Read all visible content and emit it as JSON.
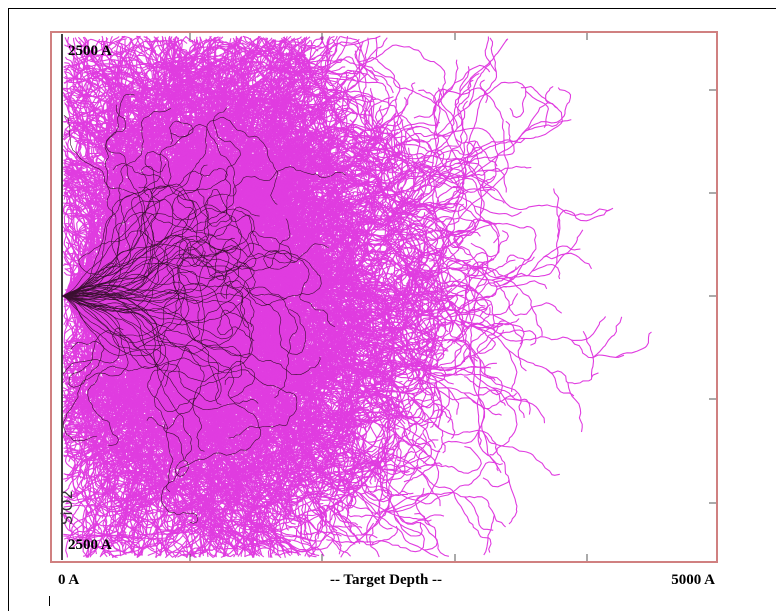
{
  "plot": {
    "top_label": "2500 A",
    "bottom_label": "2500 A",
    "layer_label": "SiO2"
  },
  "axis": {
    "start_label": "0 A",
    "title": "-- Target Depth --",
    "end_label": "5000 A"
  }
}
